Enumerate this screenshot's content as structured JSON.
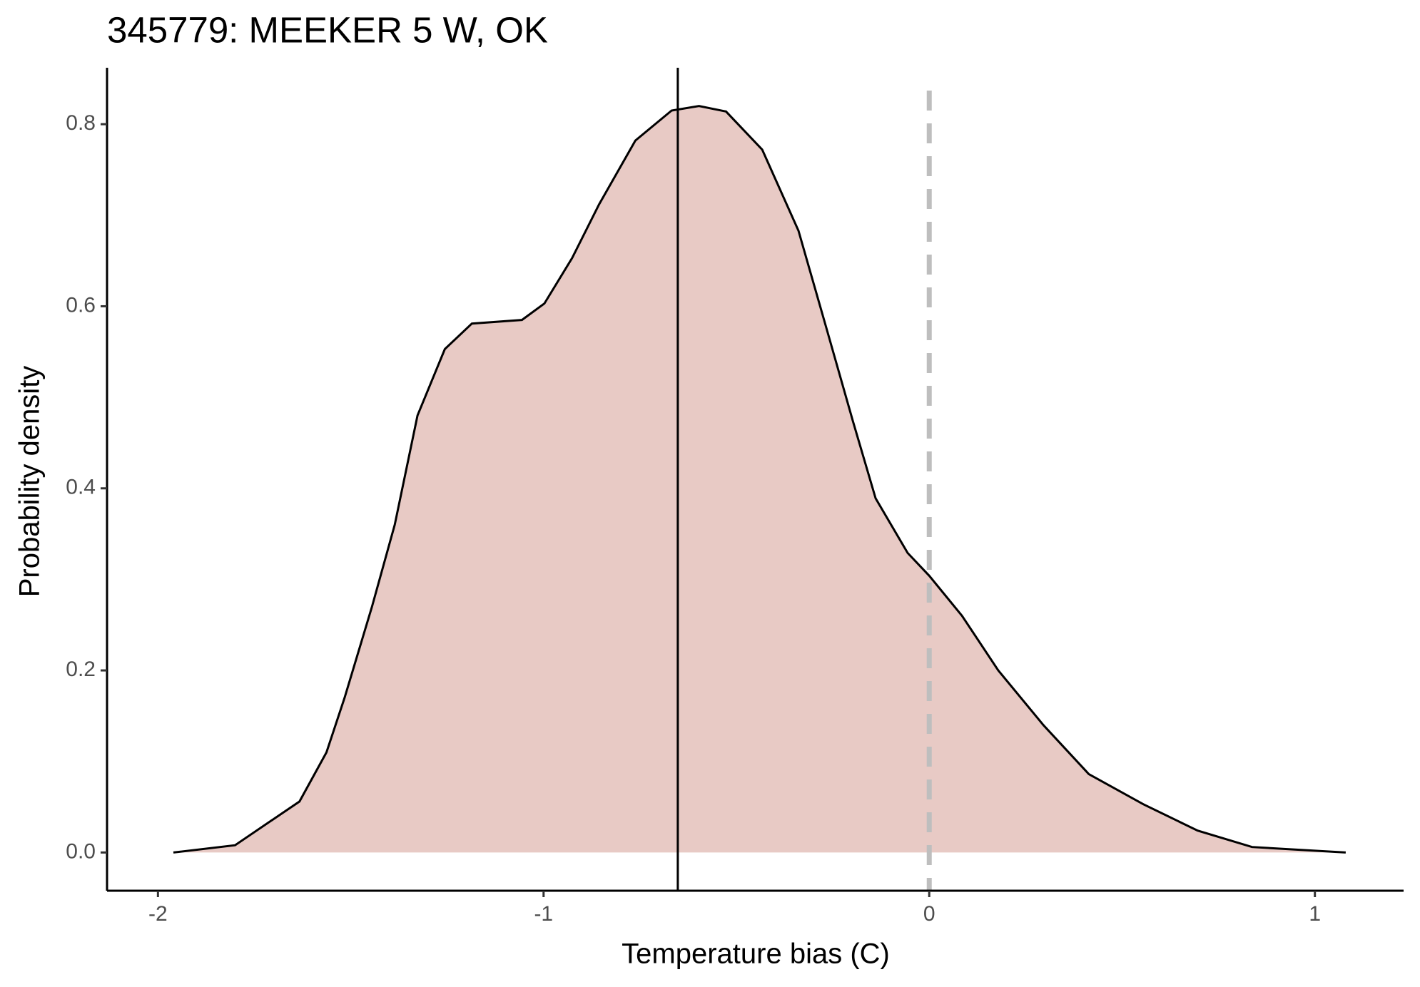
{
  "chart_data": {
    "type": "density",
    "title": "345779: MEEKER 5 W, OK",
    "xlabel": "Temperature bias (C)",
    "ylabel": "Probability density",
    "x": [
      -1.96,
      -1.8,
      -1.633,
      -1.563,
      -1.516,
      -1.445,
      -1.386,
      -1.327,
      -1.256,
      -1.186,
      -1.056,
      -0.998,
      -0.926,
      -0.856,
      -0.762,
      -0.668,
      -0.597,
      -0.527,
      -0.433,
      -0.339,
      -0.268,
      -0.198,
      -0.139,
      -0.056,
      0,
      0.085,
      0.179,
      0.296,
      0.414,
      0.555,
      0.696,
      0.837,
      1.08
    ],
    "values": [
      0,
      0.008,
      0.056,
      0.11,
      0.17,
      0.27,
      0.36,
      0.48,
      0.553,
      0.581,
      0.585,
      0.603,
      0.653,
      0.712,
      0.782,
      0.815,
      0.82,
      0.814,
      0.772,
      0.683,
      0.578,
      0.474,
      0.389,
      0.329,
      0.304,
      0.26,
      0.2,
      0.14,
      0.086,
      0.053,
      0.024,
      0.006,
      0
    ],
    "fill_color": "#e8cac5",
    "line_color": "#000000",
    "mean_line": -0.652,
    "reference_line": 0,
    "reference_color": "#bebebe",
    "xlim": [
      -2.132,
      1.23
    ],
    "ylim": [
      -0.042,
      0.862
    ],
    "xticks": [
      -2,
      -1,
      0,
      1
    ],
    "yticks": [
      {
        "value": 0,
        "label": "0.0"
      },
      0.2,
      0.4,
      0.6,
      0.8
    ]
  }
}
